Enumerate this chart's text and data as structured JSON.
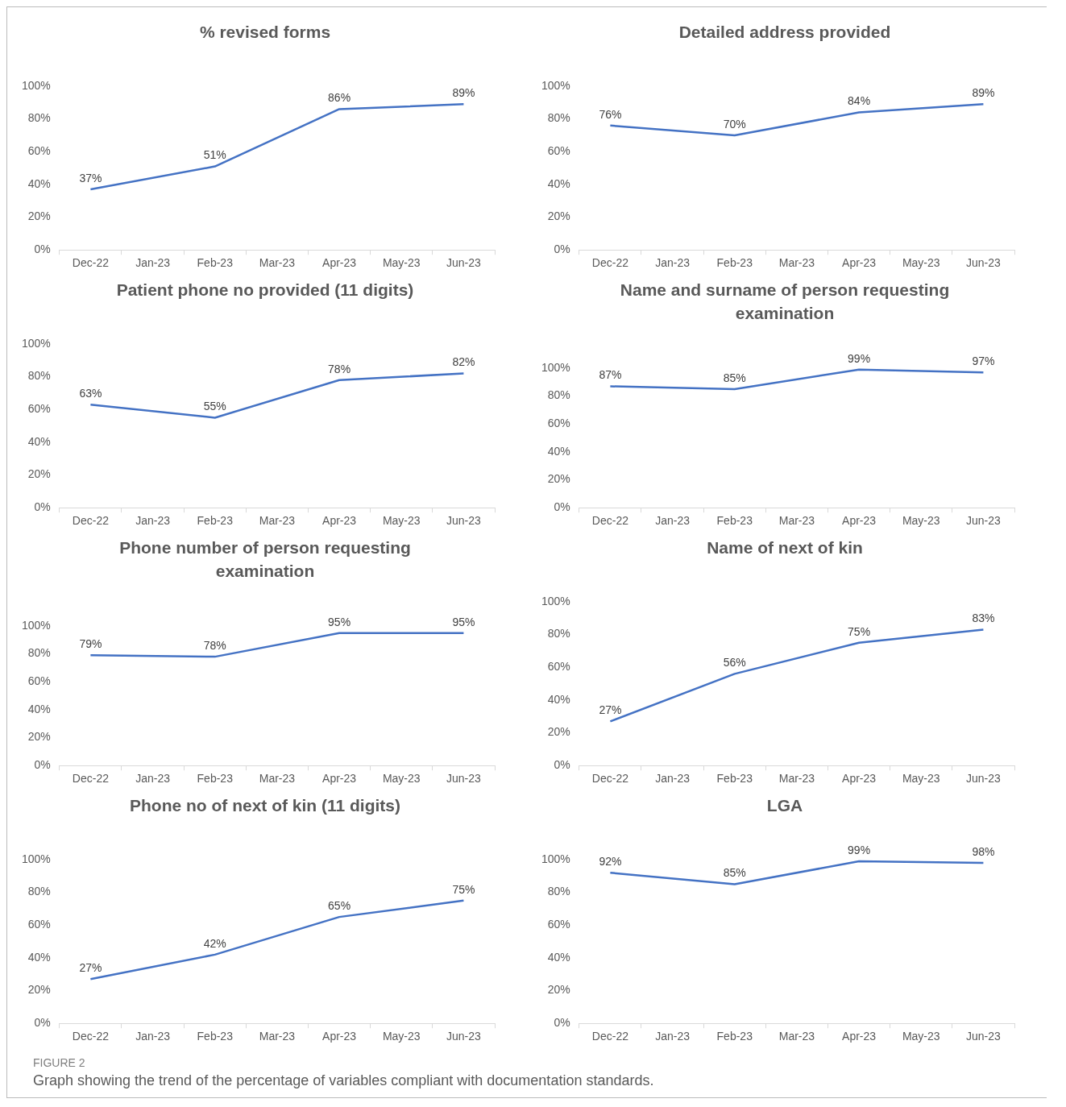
{
  "chart_data": [
    {
      "type": "line",
      "title": "% revised forms",
      "categories": [
        "Dec-22",
        "Jan-23",
        "Feb-23",
        "Mar-23",
        "Apr-23",
        "May-23",
        "Jun-23"
      ],
      "values": [
        37,
        null,
        51,
        null,
        86,
        null,
        89
      ],
      "value_labels": [
        "37%",
        null,
        "51%",
        null,
        "86%",
        null,
        "89%"
      ],
      "color": "#4472c4",
      "ylim": [
        0,
        100
      ],
      "yticks": [
        {
          "value": 0,
          "label": "0%"
        },
        {
          "value": 20,
          "label": "20%"
        },
        {
          "value": 40,
          "label": "40%"
        },
        {
          "value": 60,
          "label": "60%"
        },
        {
          "value": 80,
          "label": "80%"
        },
        {
          "value": 100,
          "label": "100%"
        }
      ]
    },
    {
      "type": "line",
      "title": "Detailed address provided",
      "categories": [
        "Dec-22",
        "Jan-23",
        "Feb-23",
        "Mar-23",
        "Apr-23",
        "May-23",
        "Jun-23"
      ],
      "values": [
        76,
        null,
        70,
        null,
        84,
        null,
        89
      ],
      "value_labels": [
        "76%",
        null,
        "70%",
        null,
        "84%",
        null,
        "89%"
      ],
      "color": "#4472c4",
      "ylim": [
        0,
        100
      ],
      "yticks": [
        {
          "value": 0,
          "label": "0%"
        },
        {
          "value": 20,
          "label": "20%"
        },
        {
          "value": 40,
          "label": "40%"
        },
        {
          "value": 60,
          "label": "60%"
        },
        {
          "value": 80,
          "label": "80%"
        },
        {
          "value": 100,
          "label": "100%"
        }
      ]
    },
    {
      "type": "line",
      "title": "Patient phone no provided (11 digits)",
      "categories": [
        "Dec-22",
        "Jan-23",
        "Feb-23",
        "Mar-23",
        "Apr-23",
        "May-23",
        "Jun-23"
      ],
      "values": [
        63,
        null,
        55,
        null,
        78,
        null,
        82
      ],
      "value_labels": [
        "63%",
        null,
        "55%",
        null,
        "78%",
        null,
        "82%"
      ],
      "color": "#4472c4",
      "ylim": [
        0,
        100
      ],
      "yticks": [
        {
          "value": 0,
          "label": "0%"
        },
        {
          "value": 20,
          "label": "20%"
        },
        {
          "value": 40,
          "label": "40%"
        },
        {
          "value": 60,
          "label": "60%"
        },
        {
          "value": 80,
          "label": "80%"
        },
        {
          "value": 100,
          "label": "100%"
        }
      ]
    },
    {
      "type": "line",
      "title": "Name and surname of person requesting examination",
      "categories": [
        "Dec-22",
        "Jan-23",
        "Feb-23",
        "Mar-23",
        "Apr-23",
        "May-23",
        "Jun-23"
      ],
      "values": [
        87,
        null,
        85,
        null,
        99,
        null,
        97
      ],
      "value_labels": [
        "87%",
        null,
        "85%",
        null,
        "99%",
        null,
        "97%"
      ],
      "color": "#4472c4",
      "ylim": [
        0,
        100
      ],
      "yticks": [
        {
          "value": 0,
          "label": "0%"
        },
        {
          "value": 20,
          "label": "20%"
        },
        {
          "value": 40,
          "label": "40%"
        },
        {
          "value": 60,
          "label": "60%"
        },
        {
          "value": 80,
          "label": "80%"
        },
        {
          "value": 100,
          "label": "100%"
        }
      ]
    },
    {
      "type": "line",
      "title": "Phone number of person requesting examination",
      "categories": [
        "Dec-22",
        "Jan-23",
        "Feb-23",
        "Mar-23",
        "Apr-23",
        "May-23",
        "Jun-23"
      ],
      "values": [
        79,
        null,
        78,
        null,
        95,
        null,
        95
      ],
      "value_labels": [
        "79%",
        null,
        "78%",
        null,
        "95%",
        null,
        "95%"
      ],
      "color": "#4472c4",
      "ylim": [
        0,
        100
      ],
      "yticks": [
        {
          "value": 0,
          "label": "0%"
        },
        {
          "value": 20,
          "label": "20%"
        },
        {
          "value": 40,
          "label": "40%"
        },
        {
          "value": 60,
          "label": "60%"
        },
        {
          "value": 80,
          "label": "80%"
        },
        {
          "value": 100,
          "label": "100%"
        }
      ]
    },
    {
      "type": "line",
      "title": "Name of next of kin",
      "categories": [
        "Dec-22",
        "Jan-23",
        "Feb-23",
        "Mar-23",
        "Apr-23",
        "May-23",
        "Jun-23"
      ],
      "values": [
        27,
        null,
        56,
        null,
        75,
        null,
        83
      ],
      "value_labels": [
        "27%",
        null,
        "56%",
        null,
        "75%",
        null,
        "83%"
      ],
      "color": "#4472c4",
      "ylim": [
        0,
        100
      ],
      "yticks": [
        {
          "value": 0,
          "label": "0%"
        },
        {
          "value": 20,
          "label": "20%"
        },
        {
          "value": 40,
          "label": "40%"
        },
        {
          "value": 60,
          "label": "60%"
        },
        {
          "value": 80,
          "label": "80%"
        },
        {
          "value": 100,
          "label": "100%"
        }
      ]
    },
    {
      "type": "line",
      "title": "Phone no of next of kin (11 digits)",
      "categories": [
        "Dec-22",
        "Jan-23",
        "Feb-23",
        "Mar-23",
        "Apr-23",
        "May-23",
        "Jun-23"
      ],
      "values": [
        27,
        null,
        42,
        null,
        65,
        null,
        75
      ],
      "value_labels": [
        "27%",
        null,
        "42%",
        null,
        "65%",
        null,
        "75%"
      ],
      "color": "#4472c4",
      "ylim": [
        0,
        100
      ],
      "yticks": [
        {
          "value": 0,
          "label": "0%"
        },
        {
          "value": 20,
          "label": "20%"
        },
        {
          "value": 40,
          "label": "40%"
        },
        {
          "value": 60,
          "label": "60%"
        },
        {
          "value": 80,
          "label": "80%"
        },
        {
          "value": 100,
          "label": "100%"
        }
      ]
    },
    {
      "type": "line",
      "title": "LGA",
      "categories": [
        "Dec-22",
        "Jan-23",
        "Feb-23",
        "Mar-23",
        "Apr-23",
        "May-23",
        "Jun-23"
      ],
      "values": [
        92,
        null,
        85,
        null,
        99,
        null,
        98
      ],
      "value_labels": [
        "92%",
        null,
        "85%",
        null,
        "99%",
        null,
        "98%"
      ],
      "color": "#4472c4",
      "ylim": [
        0,
        100
      ],
      "yticks": [
        {
          "value": 0,
          "label": "0%"
        },
        {
          "value": 20,
          "label": "20%"
        },
        {
          "value": 40,
          "label": "40%"
        },
        {
          "value": 60,
          "label": "60%"
        },
        {
          "value": 80,
          "label": "80%"
        },
        {
          "value": 100,
          "label": "100%"
        }
      ],
      "annotations": [
        "FIGURE 2",
        "Graph showing the trend of the percentage of variables compliant with documentation standards."
      ]
    }
  ]
}
